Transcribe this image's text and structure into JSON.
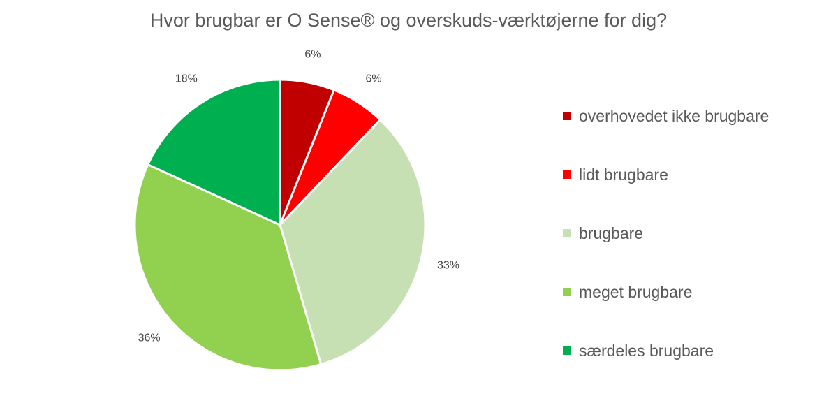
{
  "chart_data": {
    "type": "pie",
    "title": "Hvor brugbar er O Sense® og overskuds-værktøjerne for dig?",
    "start_angle_deg": 0,
    "direction": "clockwise",
    "legend_position": "right",
    "slices": [
      {
        "label": "overhovedet ikke brugbare",
        "value": 6,
        "display": "6%",
        "color": "#c00000"
      },
      {
        "label": "lidt brugbare",
        "value": 6,
        "display": "6%",
        "color": "#ff0000"
      },
      {
        "label": "brugbare",
        "value": 33,
        "display": "33%",
        "color": "#c6e0b4"
      },
      {
        "label": "meget brugbare",
        "value": 36,
        "display": "36%",
        "color": "#92d050"
      },
      {
        "label": "særdeles brugbare",
        "value": 18,
        "display": "18%",
        "color": "#00b050"
      }
    ]
  }
}
